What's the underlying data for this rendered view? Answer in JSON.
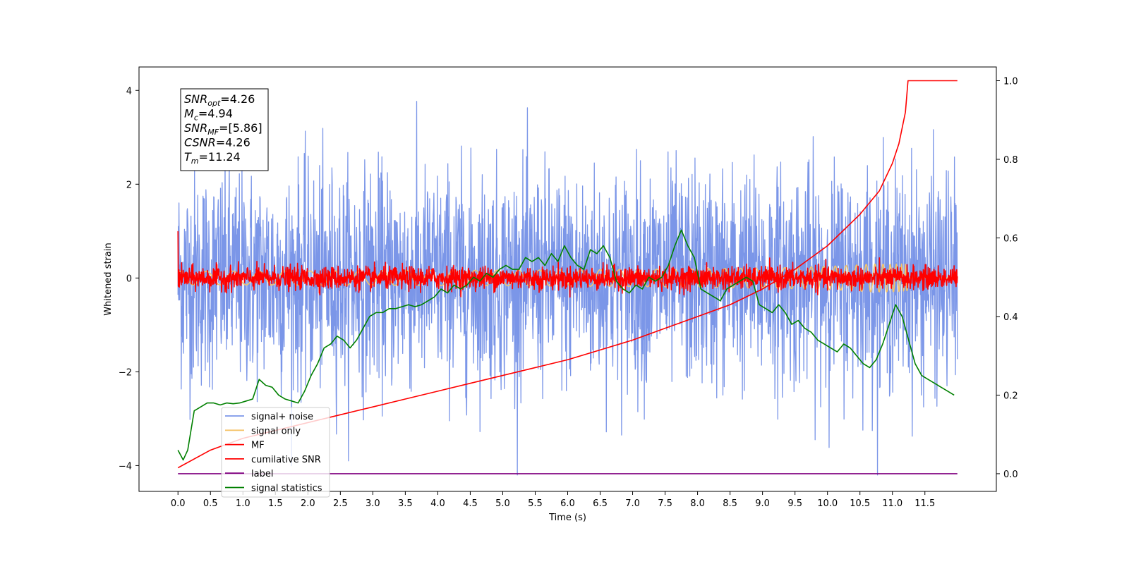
{
  "chart_data": {
    "type": "line",
    "xlabel": "Time (s)",
    "ylabel": "Whitened strain",
    "xlim": [
      -0.6,
      12.6
    ],
    "ylim": [
      -4.55,
      4.5
    ],
    "y2lim": [
      -0.045,
      1.035
    ],
    "x_ticks": [
      0.0,
      0.5,
      1.0,
      1.5,
      2.0,
      2.5,
      3.0,
      3.5,
      4.0,
      4.5,
      5.0,
      5.5,
      6.0,
      6.5,
      7.0,
      7.5,
      8.0,
      8.5,
      9.0,
      9.5,
      10.0,
      10.5,
      11.0,
      11.5
    ],
    "x_tick_labels": [
      "0.0",
      "0.5",
      "1.0",
      "1.5",
      "2.0",
      "2.5",
      "3.0",
      "3.5",
      "4.0",
      "4.5",
      "5.0",
      "5.5",
      "6.0",
      "6.5",
      "7.0",
      "7.5",
      "8.0",
      "8.5",
      "9.0",
      "9.5",
      "10.0",
      "10.5",
      "11.0",
      "11.5"
    ],
    "y_ticks": [
      -4,
      -2,
      0,
      2,
      4
    ],
    "y_tick_labels": [
      "−4",
      "−2",
      "0",
      "2",
      "4"
    ],
    "y2_ticks": [
      0.0,
      0.2,
      0.4,
      0.6,
      0.8,
      1.0
    ],
    "y2_tick_labels": [
      "0.0",
      "0.2",
      "0.4",
      "0.6",
      "0.8",
      "1.0"
    ],
    "grid": false,
    "legend_position": "lower-left",
    "annotation": {
      "lines": [
        {
          "sym": "SNR",
          "sub": "opt",
          "val": "=4.26"
        },
        {
          "sym": "M",
          "sub": "c",
          "val": "=4.94"
        },
        {
          "sym": "SNR",
          "sub": "MF",
          "val": "=[5.86]"
        },
        {
          "sym": "CSNR",
          "sub": "",
          "val": "=4.26"
        },
        {
          "sym": "T",
          "sub": "m",
          "val": "=11.24"
        }
      ]
    },
    "series": [
      {
        "name": "signal+ noise",
        "color": "#7b96e8",
        "axis": "left",
        "kind": "noise",
        "x_range": [
          0.0,
          12.0
        ],
        "sigma": 1.0,
        "samples": 2400
      },
      {
        "name": "signal only",
        "color": "#f5c46a",
        "axis": "left",
        "kind": "chirp",
        "x_range": [
          0.0,
          12.0
        ],
        "amplitude": 0.3,
        "merger_time": 11.24
      },
      {
        "name": "MF",
        "color": "#ff0000",
        "axis": "left",
        "kind": "noise",
        "x_range": [
          0.0,
          12.0
        ],
        "sigma": 0.12,
        "start_value": 1.0,
        "samples": 2400
      },
      {
        "name": "cumilative SNR",
        "color": "#ff0000",
        "axis": "right",
        "x": [
          0.0,
          0.5,
          1.0,
          1.5,
          2.0,
          2.5,
          3.0,
          3.5,
          4.0,
          4.5,
          5.0,
          5.5,
          6.0,
          6.5,
          7.0,
          7.5,
          8.0,
          8.5,
          9.0,
          9.5,
          10.0,
          10.5,
          10.8,
          11.0,
          11.1,
          11.2,
          11.24,
          12.0
        ],
        "y": [
          0.015,
          0.06,
          0.09,
          0.11,
          0.13,
          0.15,
          0.17,
          0.19,
          0.21,
          0.23,
          0.25,
          0.27,
          0.29,
          0.315,
          0.34,
          0.37,
          0.4,
          0.43,
          0.47,
          0.52,
          0.58,
          0.66,
          0.72,
          0.79,
          0.84,
          0.92,
          1.0,
          1.0
        ]
      },
      {
        "name": "label",
        "color": "#800080",
        "axis": "right",
        "x": [
          0.0,
          12.0
        ],
        "y": [
          0.0,
          0.0
        ]
      },
      {
        "name": "signal statistics",
        "color": "#008000",
        "axis": "right",
        "x": [
          0.0,
          0.08,
          0.15,
          0.25,
          0.35,
          0.45,
          0.55,
          0.65,
          0.75,
          0.85,
          0.95,
          1.05,
          1.15,
          1.25,
          1.35,
          1.45,
          1.55,
          1.65,
          1.75,
          1.85,
          1.95,
          2.05,
          2.15,
          2.25,
          2.35,
          2.45,
          2.55,
          2.65,
          2.75,
          2.85,
          2.95,
          3.05,
          3.15,
          3.25,
          3.35,
          3.45,
          3.55,
          3.65,
          3.75,
          3.85,
          3.95,
          4.05,
          4.15,
          4.25,
          4.35,
          4.45,
          4.55,
          4.65,
          4.75,
          4.85,
          4.95,
          5.05,
          5.15,
          5.25,
          5.35,
          5.45,
          5.55,
          5.65,
          5.75,
          5.85,
          5.95,
          6.05,
          6.15,
          6.25,
          6.35,
          6.45,
          6.55,
          6.65,
          6.75,
          6.85,
          6.95,
          7.05,
          7.15,
          7.25,
          7.35,
          7.45,
          7.55,
          7.65,
          7.75,
          7.85,
          7.95,
          8.05,
          8.15,
          8.25,
          8.35,
          8.45,
          8.55,
          8.65,
          8.75,
          8.85,
          8.95,
          9.05,
          9.15,
          9.25,
          9.35,
          9.45,
          9.55,
          9.65,
          9.75,
          9.85,
          9.95,
          10.05,
          10.15,
          10.25,
          10.35,
          10.45,
          10.55,
          10.65,
          10.75,
          10.85,
          10.95,
          11.05,
          11.15,
          11.25,
          11.35,
          11.45,
          11.55,
          11.65,
          11.75,
          11.85,
          11.95
        ],
        "y": [
          0.06,
          0.035,
          0.06,
          0.16,
          0.17,
          0.18,
          0.18,
          0.175,
          0.18,
          0.178,
          0.18,
          0.185,
          0.19,
          0.24,
          0.225,
          0.22,
          0.2,
          0.19,
          0.185,
          0.18,
          0.21,
          0.25,
          0.28,
          0.32,
          0.33,
          0.35,
          0.34,
          0.32,
          0.34,
          0.37,
          0.4,
          0.41,
          0.41,
          0.42,
          0.42,
          0.425,
          0.43,
          0.425,
          0.43,
          0.44,
          0.45,
          0.47,
          0.46,
          0.48,
          0.47,
          0.48,
          0.5,
          0.49,
          0.51,
          0.5,
          0.52,
          0.53,
          0.52,
          0.52,
          0.55,
          0.54,
          0.55,
          0.53,
          0.56,
          0.54,
          0.58,
          0.55,
          0.53,
          0.52,
          0.57,
          0.56,
          0.58,
          0.55,
          0.49,
          0.47,
          0.46,
          0.48,
          0.47,
          0.5,
          0.49,
          0.5,
          0.53,
          0.58,
          0.62,
          0.58,
          0.55,
          0.47,
          0.46,
          0.45,
          0.44,
          0.47,
          0.48,
          0.49,
          0.5,
          0.49,
          0.43,
          0.42,
          0.41,
          0.43,
          0.41,
          0.38,
          0.39,
          0.37,
          0.36,
          0.34,
          0.33,
          0.32,
          0.31,
          0.33,
          0.32,
          0.3,
          0.28,
          0.27,
          0.29,
          0.33,
          0.38,
          0.43,
          0.4,
          0.34,
          0.28,
          0.25,
          0.24,
          0.23,
          0.22,
          0.21,
          0.2
        ]
      }
    ]
  }
}
